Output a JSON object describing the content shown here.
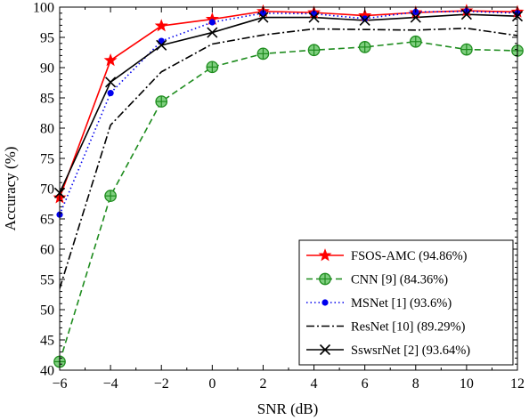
{
  "chart_data": {
    "type": "line",
    "xlabel": "SNR (dB)",
    "ylabel": "Accuracy (%)",
    "xlim": [
      -6,
      12
    ],
    "ylim": [
      40,
      100
    ],
    "x_ticks": [
      -6,
      -4,
      -2,
      0,
      2,
      4,
      6,
      8,
      10,
      12
    ],
    "x_tick_labels": [
      "−6",
      "−4",
      "−2",
      "0",
      "2",
      "4",
      "6",
      "8",
      "10",
      "12"
    ],
    "y_ticks": [
      40,
      45,
      50,
      55,
      60,
      65,
      70,
      75,
      80,
      85,
      90,
      95,
      100
    ],
    "y_tick_labels": [
      "40",
      "45",
      "50",
      "55",
      "60",
      "65",
      "70",
      "75",
      "80",
      "85",
      "90",
      "95",
      "100"
    ],
    "grid": false,
    "legend_position": "bottom-right",
    "x": [
      -6,
      -4,
      -2,
      0,
      2,
      4,
      6,
      8,
      10,
      12
    ],
    "series": [
      {
        "name": "FSOS-AMC (94.86%)",
        "values": [
          68.5,
          91.2,
          96.9,
          98.0,
          99.3,
          99.1,
          98.6,
          99.1,
          99.4,
          99.2
        ],
        "color": "#ff0000",
        "line_style": "solid",
        "marker": "star"
      },
      {
        "name": "CNN [9] (84.36%)",
        "values": [
          41.4,
          68.8,
          84.4,
          90.1,
          92.3,
          92.9,
          93.4,
          94.3,
          93.0,
          92.8
        ],
        "color": "#1e8c1e",
        "line_style": "dashed",
        "marker": "circle-cross"
      },
      {
        "name": "MSNet [1] (93.6%)",
        "values": [
          65.7,
          85.8,
          94.4,
          97.5,
          99.0,
          98.9,
          98.1,
          99.2,
          99.3,
          99.0
        ],
        "color": "#0000ee",
        "line_style": "dotted",
        "marker": "dot"
      },
      {
        "name": "ResNet [10] (89.29%)",
        "values": [
          53.5,
          80.5,
          89.3,
          93.9,
          95.4,
          96.4,
          96.3,
          96.2,
          96.5,
          95.3
        ],
        "color": "#000000",
        "line_style": "dashdot",
        "marker": "none"
      },
      {
        "name": "SswsrNet [2] (93.64%)",
        "values": [
          69.3,
          87.6,
          93.7,
          95.8,
          98.3,
          98.3,
          97.8,
          98.3,
          98.8,
          98.5
        ],
        "color": "#000000",
        "line_style": "solid",
        "marker": "x"
      }
    ]
  }
}
